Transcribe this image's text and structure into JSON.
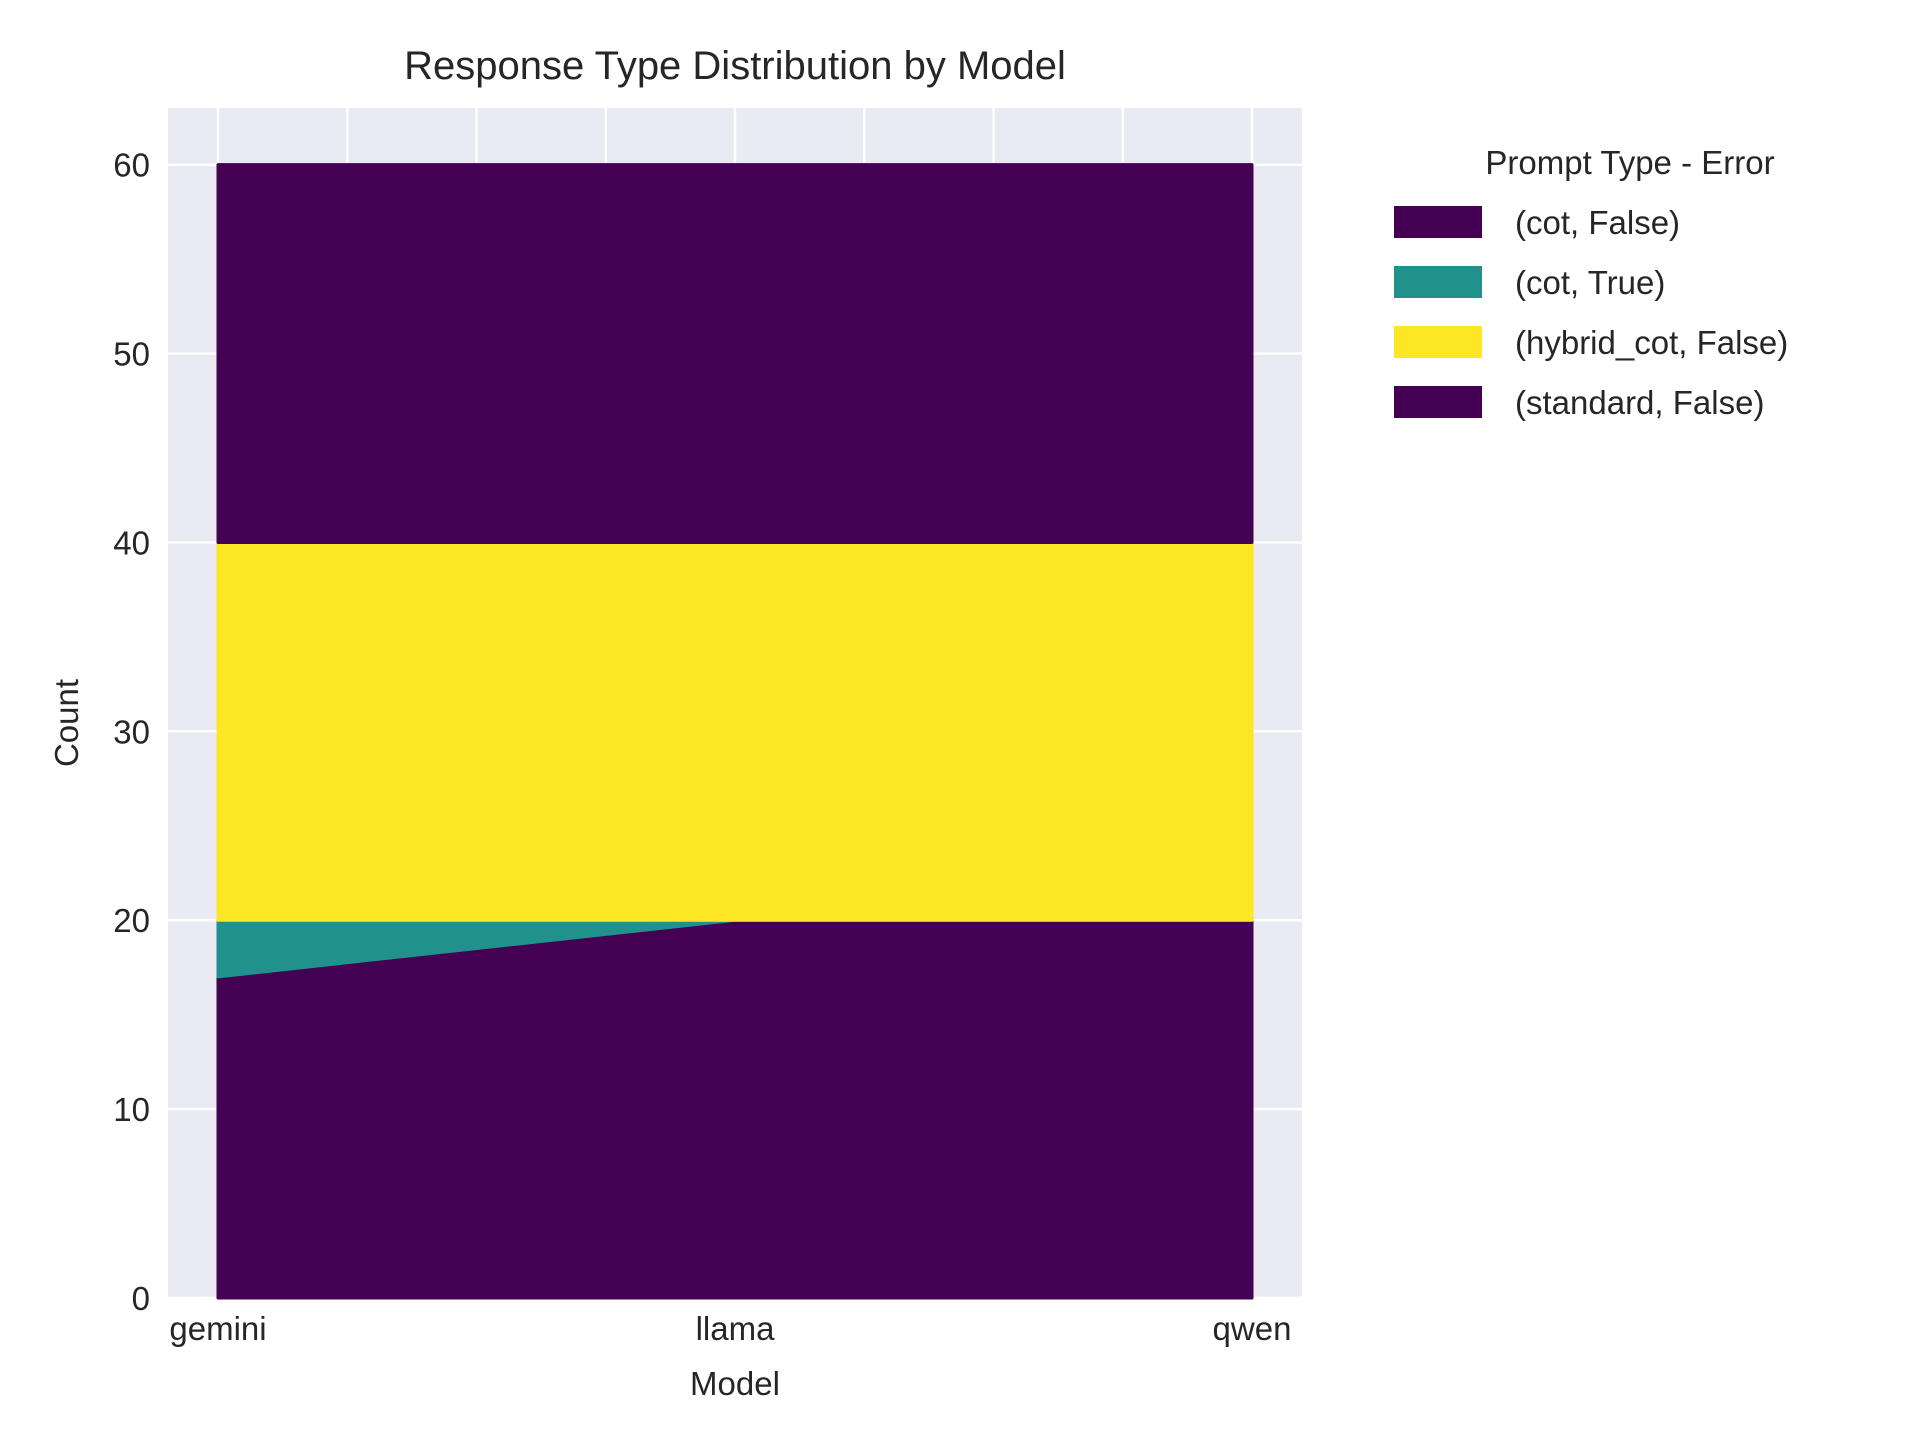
{
  "chart_data": {
    "type": "area",
    "stacked": true,
    "title": "Response Type Distribution by Model",
    "xlabel": "Model",
    "ylabel": "Count",
    "categories": [
      "gemini",
      "llama",
      "qwen"
    ],
    "ylim": [
      0,
      63
    ],
    "yticks": [
      0,
      10,
      20,
      30,
      40,
      50,
      60
    ],
    "grid": true,
    "legend": {
      "title": "Prompt Type - Error",
      "placement": "outside-upper-right"
    },
    "series": [
      {
        "name": "(cot, False)",
        "values": [
          17,
          20,
          20
        ],
        "color": "#440154"
      },
      {
        "name": "(cot, True)",
        "values": [
          3,
          0,
          0
        ],
        "color": "#21918c"
      },
      {
        "name": "(hybrid_cot, False)",
        "values": [
          20,
          20,
          20
        ],
        "color": "#fde725"
      },
      {
        "name": "(standard, False)",
        "values": [
          20,
          20,
          20
        ],
        "color": "#440154"
      }
    ]
  }
}
